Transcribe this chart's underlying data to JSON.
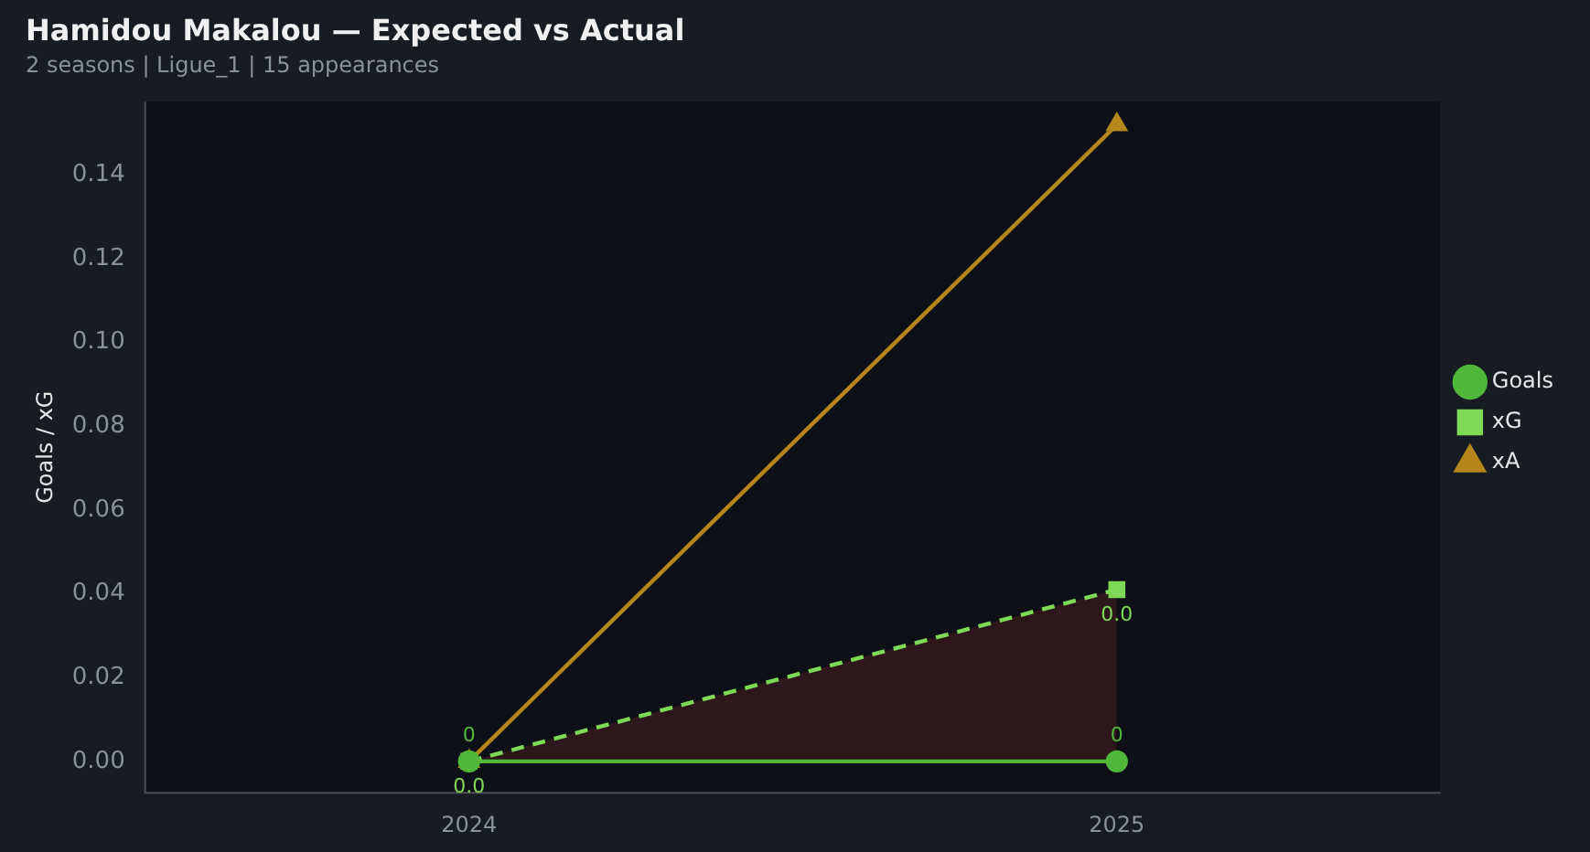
{
  "chart_data": {
    "type": "line",
    "title": "Hamidou Makalou — Expected vs Actual",
    "subtitle": "2 seasons | Ligue_1 | 15 appearances",
    "ylabel": "Goals / xG",
    "categories": [
      "2024",
      "2025"
    ],
    "series": [
      {
        "name": "Goals",
        "color": "#4fb83a",
        "values": [
          0,
          0
        ],
        "marker": "circle",
        "line_style": "solid",
        "value_labels": [
          "0",
          "0"
        ]
      },
      {
        "name": "xG",
        "color": "#7ed957",
        "values": [
          0,
          0.041
        ],
        "marker": "square",
        "line_style": "dashed",
        "value_labels": [
          "0.0",
          "0.0"
        ],
        "lower": [
          0,
          0
        ],
        "upper": [
          0,
          0.041
        ]
      },
      {
        "name": "xA",
        "color": "#b5861c",
        "values": [
          0,
          0.152
        ],
        "marker": "triangle",
        "line_style": "solid"
      }
    ],
    "ylim": [
      -0.0075,
      0.1575
    ],
    "yticks": [
      {
        "value": 0,
        "label": "0.00"
      },
      {
        "value": 0.02,
        "label": "0.02"
      },
      {
        "value": 0.04,
        "label": "0.04"
      },
      {
        "value": 0.06,
        "label": "0.06"
      },
      {
        "value": 0.08,
        "label": "0.08"
      },
      {
        "value": 0.1,
        "label": "0.10"
      },
      {
        "value": 0.12,
        "label": "0.12"
      },
      {
        "value": 0.14,
        "label": "0.14"
      }
    ],
    "legend": "right"
  }
}
